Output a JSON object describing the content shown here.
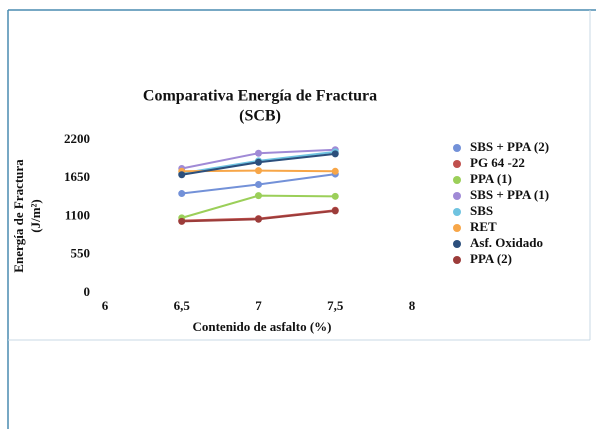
{
  "chart_data": {
    "type": "line",
    "title": [
      "Comparativa Energía de Fractura",
      "(SCB)"
    ],
    "y_label": [
      "Energía de Fractura",
      "(J/m²)"
    ],
    "x_label": "Contenido de asfalto (%)",
    "x": [
      6.5,
      7,
      7.5
    ],
    "xlim": [
      6,
      8
    ],
    "xticks": [
      6,
      {
        "value": 6.5,
        "label": "6,5"
      },
      7,
      {
        "value": 7.5,
        "label": "7,5"
      },
      8
    ],
    "ylim": [
      0,
      2200
    ],
    "yticks": [
      0,
      550,
      1100,
      1650,
      2200
    ],
    "series": [
      {
        "name": "SBS + PPA (2)",
        "color": "#7391d8",
        "values": [
          1430,
          1560,
          1710
        ]
      },
      {
        "name": "PG 64 -22",
        "color": "#c0504d",
        "values": [
          1040,
          1070,
          1190
        ]
      },
      {
        "name": "PPA (1)",
        "color": "#9bcf59",
        "values": [
          1080,
          1400,
          1390
        ]
      },
      {
        "name": "SBS + PPA (1)",
        "color": "#a08ad6",
        "values": [
          1790,
          2010,
          2060
        ]
      },
      {
        "name": "SBS",
        "color": "#6fc3e0",
        "values": [
          1720,
          1900,
          2030
        ]
      },
      {
        "name": "RET",
        "color": "#f7a648",
        "values": [
          1750,
          1760,
          1750
        ]
      },
      {
        "name": "Asf. Oxidado",
        "color": "#2c4f7c",
        "values": [
          1700,
          1880,
          2000
        ]
      },
      {
        "name": " PPA (2)",
        "color": "#9c3c3a",
        "values": [
          1030,
          1060,
          1180
        ]
      }
    ]
  }
}
